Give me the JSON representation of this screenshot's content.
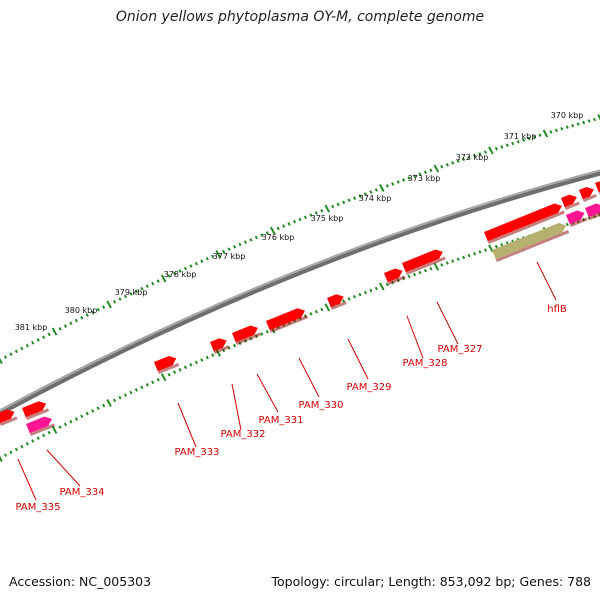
{
  "title": "Onion yellows phytoplasma OY-M, complete genome",
  "accession": "Accession: NC_005303",
  "topology": "Topology: circular; Length: 853,092 bp; Genes: 788",
  "colors": {
    "backbone": "#8a8a8a",
    "cds": "#ff0000",
    "cds_highlight": "#ff1493",
    "feature_other": "#b5b070",
    "tick": "#228b22",
    "label": "#d40000"
  },
  "ruler": {
    "kbp_labels": [
      "370 kbp",
      "371 kbp",
      "372 kbp",
      "373 kbp",
      "374 kbp",
      "375 kbp",
      "376 kbp",
      "377 kbp",
      "378 kbp",
      "379 kbp",
      "380 kbp",
      "381 kbp"
    ]
  },
  "genes": [
    {
      "label": "hflB"
    },
    {
      "label": "PAM_327"
    },
    {
      "label": "PAM_328"
    },
    {
      "label": "PAM_329"
    },
    {
      "label": "PAM_330"
    },
    {
      "label": "PAM_331"
    },
    {
      "label": "PAM_332"
    },
    {
      "label": "PAM_333"
    },
    {
      "label": "PAM_334"
    },
    {
      "label": "PAM_335"
    }
  ]
}
